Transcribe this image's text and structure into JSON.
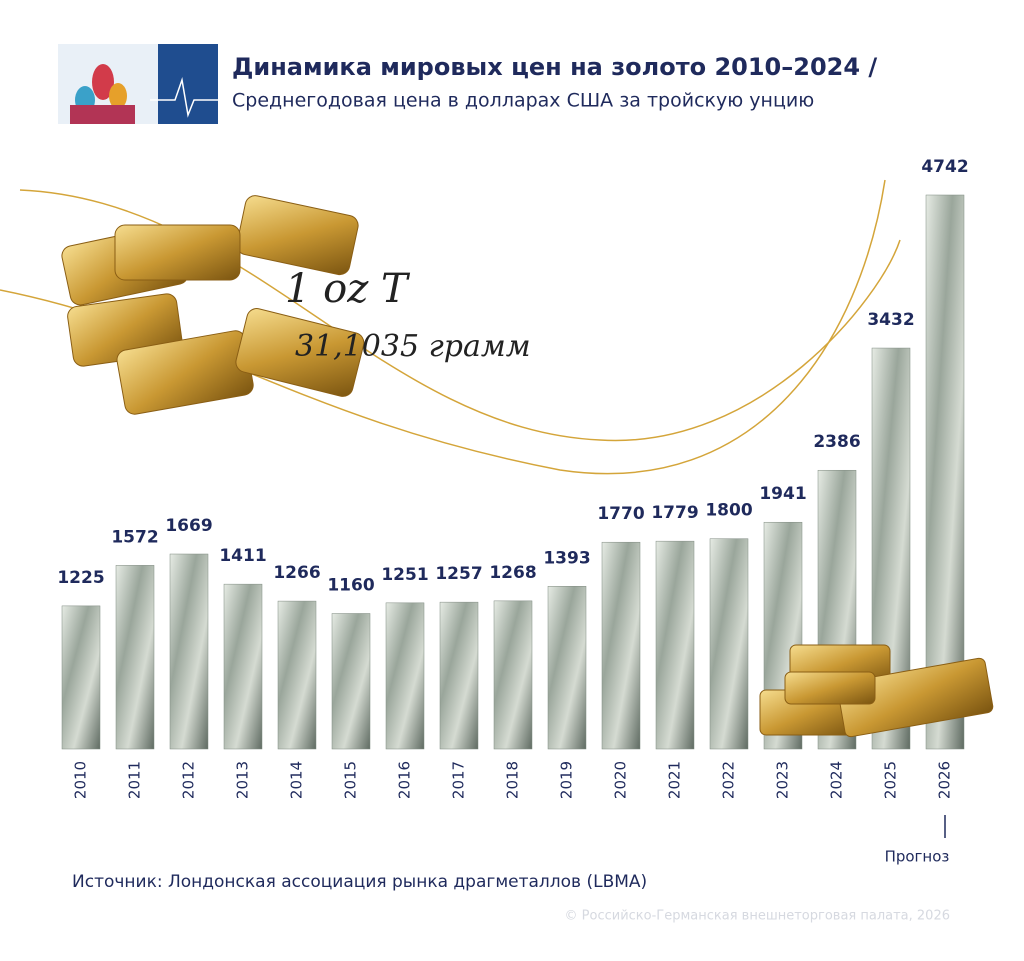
{
  "chart_data": {
    "type": "bar",
    "title": "Динамика мировых цен на золото 2010–2024 /",
    "subtitle": "Среднегодовая цена в долларах США за тройскую унцию",
    "categories": [
      "2010",
      "2011",
      "2012",
      "2013",
      "2014",
      "2015",
      "2016",
      "2017",
      "2018",
      "2019",
      "2020",
      "2021",
      "2022",
      "2023",
      "2024",
      "2025",
      "2026"
    ],
    "values": [
      1225,
      1572,
      1669,
      1411,
      1266,
      1160,
      1251,
      1257,
      1268,
      1393,
      1770,
      1779,
      1800,
      1941,
      2386,
      3432,
      4742
    ],
    "color": "#7f8a80",
    "annotations": [
      "1 oz T",
      "31,1035 грамм"
    ],
    "forecast_note": "Прогноз",
    "source": "Источник: Лондонская ассоциация рынка драгметаллов (LBMA)",
    "copyright": "© Российско-Германская внешнеторговая палата, 2026"
  }
}
